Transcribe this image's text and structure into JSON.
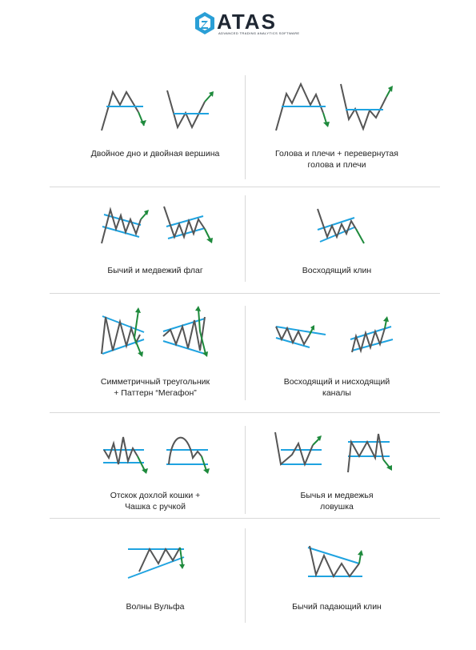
{
  "brand": {
    "name": "ATAS",
    "tagline": "ADVANCED TRADING ANALYTICS SOFTWARE",
    "icon_color": "#2a9fd6",
    "text_color": "#1f2733"
  },
  "colors": {
    "price_line": "#555555",
    "level_line": "#1fa3e0",
    "arrow": "#1e8a3c",
    "divider": "#d9d9d9"
  },
  "patterns": [
    {
      "id": "double-bottom-top",
      "caption": "Двойное дно и двойная вершина"
    },
    {
      "id": "head-shoulders",
      "caption": "Голова и плечи + перевернутая\nголова и плечи"
    },
    {
      "id": "bull-bear-flag",
      "caption": "Бычий и медвежий флаг"
    },
    {
      "id": "rising-wedge",
      "caption": "Восходящий клин"
    },
    {
      "id": "triangle-megaphone",
      "caption": "Симметричный треугольник\n+ Паттерн “Мегафон”"
    },
    {
      "id": "channels",
      "caption": "Восходящий и нисходящий\nканалы"
    },
    {
      "id": "dead-cat-cup",
      "caption": "Отскок дохлой кошки +\nЧашка с ручкой"
    },
    {
      "id": "bull-bear-trap",
      "caption": "Бычья и медвежья\nловушка"
    },
    {
      "id": "wolfe-waves",
      "caption": "Волны Вульфа"
    },
    {
      "id": "falling-wedge",
      "caption": "Бычий падающий клин"
    }
  ]
}
